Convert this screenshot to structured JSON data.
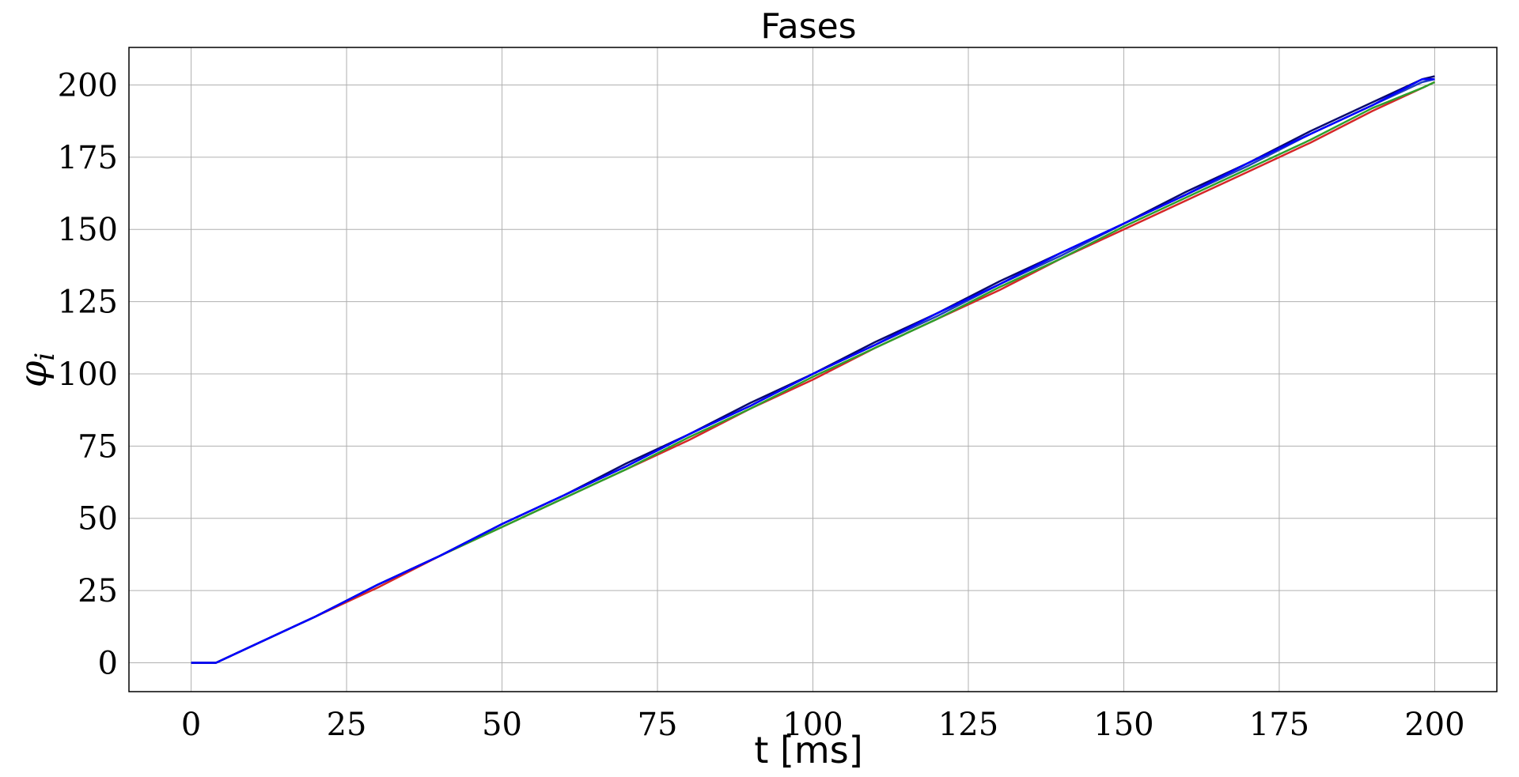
{
  "chart_data": {
    "type": "line",
    "title": "Fases",
    "xlabel": "t [ms]",
    "ylabel": "φ",
    "ylabel_subscript": "i",
    "xlim": [
      -10,
      210
    ],
    "ylim": [
      -10,
      213
    ],
    "xticks": [
      0,
      25,
      50,
      75,
      100,
      125,
      150,
      175,
      200
    ],
    "yticks": [
      0,
      25,
      50,
      75,
      100,
      125,
      150,
      175,
      200
    ],
    "grid": true,
    "series": [
      {
        "color": "#d62728",
        "x": [
          0,
          4,
          10,
          20,
          30,
          40,
          50,
          60,
          70,
          80,
          90,
          100,
          110,
          120,
          130,
          140,
          150,
          160,
          170,
          180,
          190,
          198,
          200
        ],
        "y": [
          0,
          0,
          6,
          16,
          26,
          37,
          47,
          57,
          67,
          77,
          88,
          98,
          109,
          119,
          129,
          140,
          150,
          160,
          170,
          180,
          191,
          199,
          201
        ]
      },
      {
        "color": "#2ca02c",
        "x": [
          0,
          4,
          10,
          20,
          30,
          40,
          50,
          60,
          70,
          80,
          90,
          100,
          110,
          120,
          130,
          140,
          150,
          160,
          170,
          180,
          190,
          198,
          200
        ],
        "y": [
          0,
          0,
          6,
          16,
          27,
          37,
          47,
          57,
          67,
          78,
          88,
          99,
          109,
          119,
          130,
          140,
          151,
          161,
          171,
          181,
          192,
          199,
          201
        ]
      },
      {
        "color": "#1f3fbf",
        "x": [
          0,
          4,
          10,
          20,
          30,
          40,
          50,
          60,
          70,
          80,
          90,
          100,
          110,
          120,
          130,
          140,
          150,
          160,
          170,
          180,
          190,
          198,
          200
        ],
        "y": [
          0,
          0,
          6,
          16,
          27,
          37,
          48,
          58,
          68,
          79,
          89,
          100,
          110,
          120,
          131,
          141,
          152,
          162,
          172,
          183,
          193,
          201,
          202
        ]
      },
      {
        "color": "#0a0a6e",
        "x": [
          0,
          4,
          10,
          20,
          30,
          40,
          50,
          60,
          70,
          80,
          90,
          100,
          110,
          120,
          130,
          140,
          150,
          160,
          170,
          180,
          190,
          198,
          200
        ],
        "y": [
          0,
          0,
          6,
          16,
          27,
          37,
          48,
          58,
          69,
          79,
          90,
          100,
          111,
          121,
          132,
          142,
          152,
          163,
          173,
          184,
          194,
          202,
          203
        ]
      },
      {
        "color": "#0000ff",
        "x": [
          0,
          4,
          10,
          20,
          30,
          40,
          50,
          60,
          70,
          80,
          90,
          100,
          110,
          120,
          130,
          140,
          150,
          160,
          170,
          180,
          190,
          198,
          200
        ],
        "y": [
          0,
          0,
          6,
          16,
          27,
          37,
          48,
          58,
          68,
          79,
          89,
          100,
          110,
          121,
          131,
          142,
          152,
          162,
          173,
          183,
          193,
          202,
          202
        ]
      }
    ]
  }
}
